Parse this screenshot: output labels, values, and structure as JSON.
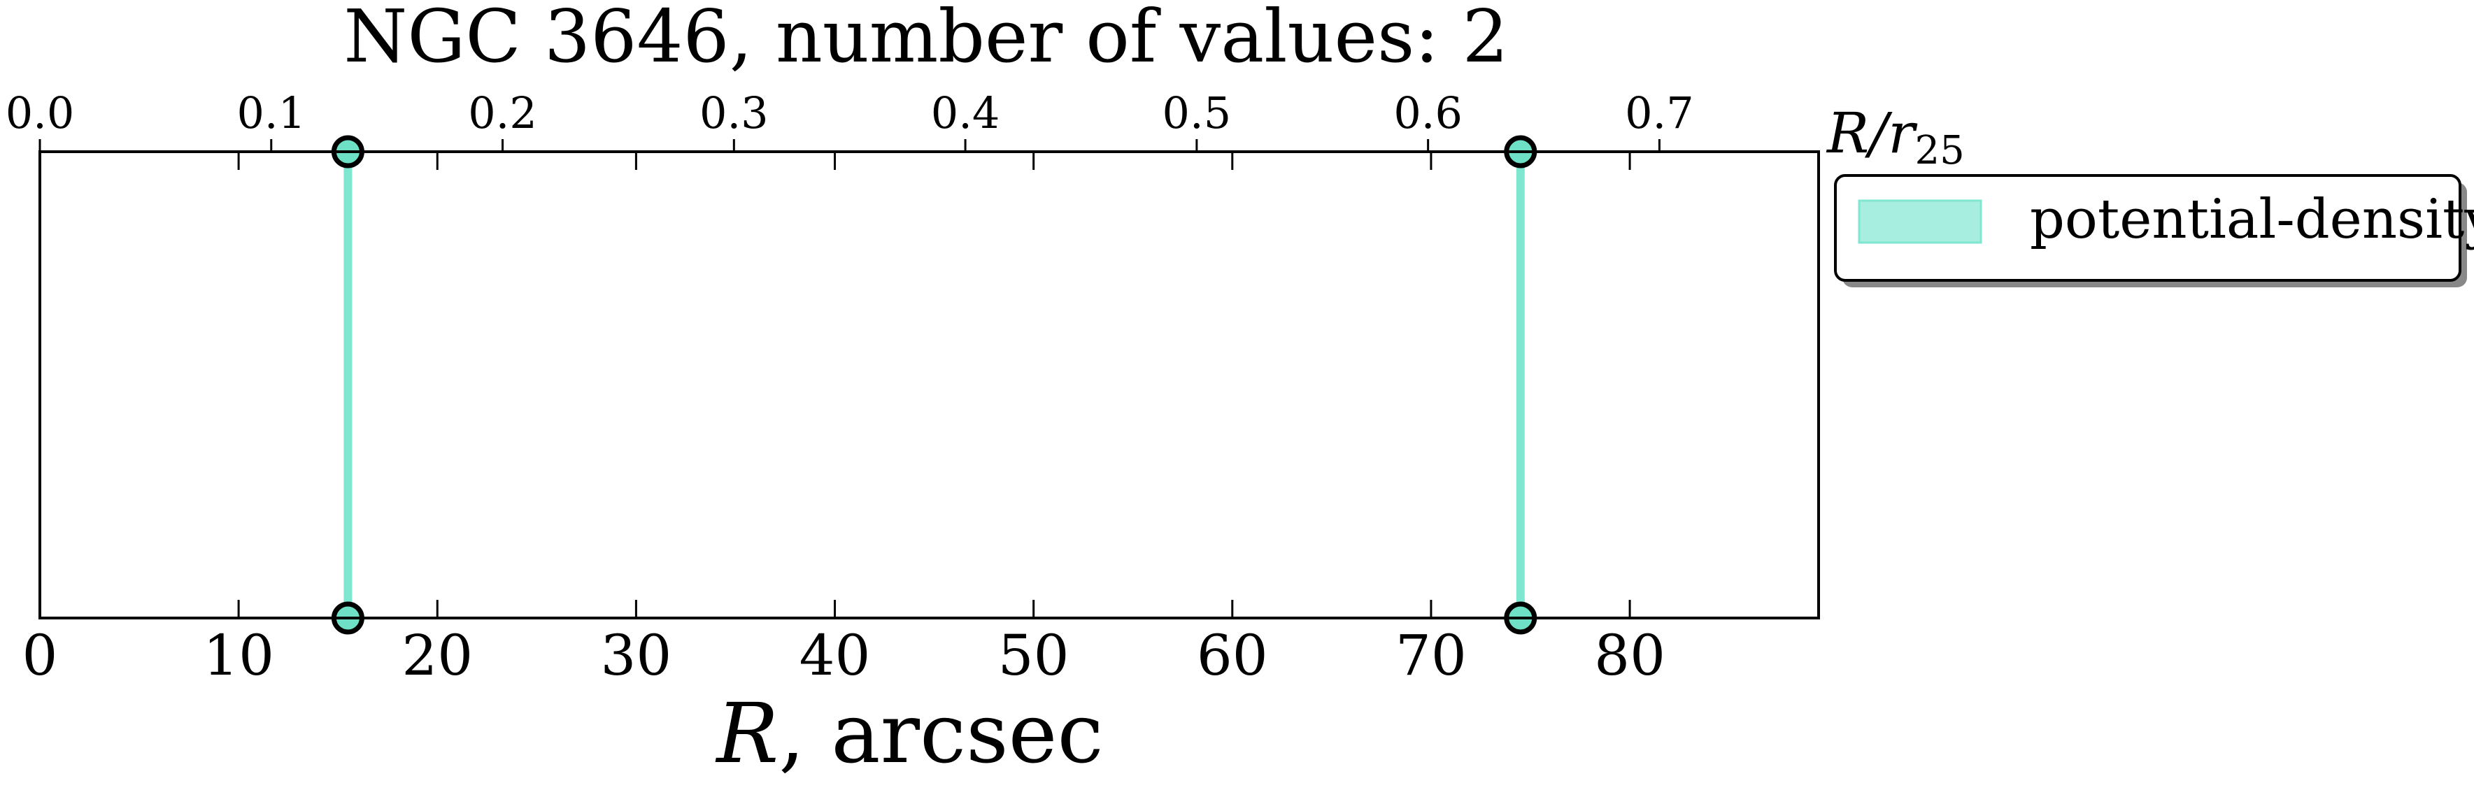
{
  "chart_data": {
    "type": "line",
    "title": "NGC 3646, number of values: 2",
    "xlabel": {
      "symbol": "R",
      "rest": ", arcsec"
    },
    "x2label": {
      "base": "R/r",
      "sub": "25"
    },
    "xlim": [
      0,
      89.5
    ],
    "x_ticks": [
      0,
      10,
      20,
      30,
      40,
      50,
      60,
      70,
      80
    ],
    "x_tick_labels": [
      "0",
      "10",
      "20",
      "30",
      "40",
      "50",
      "60",
      "70",
      "80"
    ],
    "x2_ticks": [
      0.0,
      0.1,
      0.2,
      0.3,
      0.4,
      0.5,
      0.6,
      0.7
    ],
    "x2_tick_labels": [
      "0.0",
      "0.1",
      "0.2",
      "0.3",
      "0.4",
      "0.5",
      "0.6",
      "0.7"
    ],
    "x2_per_x": 0.00859,
    "y_ticks_visible": false,
    "grid": false,
    "legend_position": "outside-top-right",
    "series": [
      {
        "name": "potential-density",
        "color": "#7fe6d0",
        "marker_fill": "#6ee0c6",
        "x": [
          15.5,
          74.5
        ]
      }
    ]
  }
}
